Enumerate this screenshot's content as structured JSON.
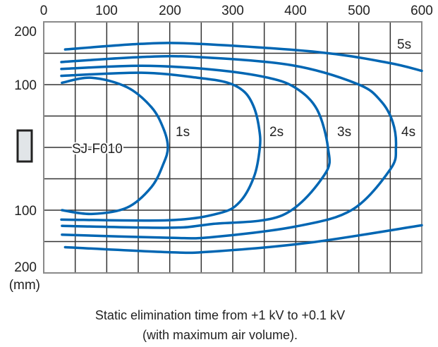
{
  "chart_data": {
    "type": "line",
    "xlim": [
      0,
      600
    ],
    "ylim": [
      -200,
      200
    ],
    "x_ticks": [
      "0",
      "100",
      "200",
      "300",
      "400",
      "500",
      "600"
    ],
    "y_ticks_top": [
      "200",
      "100"
    ],
    "y_ticks_bottom": [
      "100",
      "200"
    ],
    "y_unit": "(mm)",
    "grid": true,
    "grid_step": 50,
    "device_label": "SJ-F010",
    "curve_color": "#0066b3",
    "series": [
      {
        "name": "1s",
        "top": [
          [
            29,
            103
          ],
          [
            76,
            111
          ],
          [
            132,
            96
          ],
          [
            171,
            64
          ],
          [
            190,
            30
          ],
          [
            197,
            0
          ]
        ],
        "bottom": [
          [
            29,
            -100
          ],
          [
            76,
            -106
          ],
          [
            132,
            -96
          ],
          [
            171,
            -63
          ],
          [
            190,
            -26
          ],
          [
            197,
            0
          ]
        ]
      },
      {
        "name": "2s",
        "top": [
          [
            28,
            114
          ],
          [
            155,
            119
          ],
          [
            244,
            111
          ],
          [
            292,
            103
          ],
          [
            319,
            88
          ],
          [
            334,
            63
          ],
          [
            342,
            29
          ],
          [
            343,
            0
          ]
        ],
        "bottom": [
          [
            28,
            -115
          ],
          [
            199,
            -116
          ],
          [
            278,
            -105
          ],
          [
            311,
            -87
          ],
          [
            334,
            -46
          ],
          [
            343,
            0
          ]
        ]
      },
      {
        "name": "3s",
        "top": [
          [
            28,
            125
          ],
          [
            155,
            130
          ],
          [
            267,
            124
          ],
          [
            356,
            111
          ],
          [
            401,
            94
          ],
          [
            434,
            60
          ],
          [
            451,
            0
          ]
        ],
        "bottom": [
          [
            29,
            -125
          ],
          [
            199,
            -128
          ],
          [
            267,
            -122
          ],
          [
            379,
            -108
          ],
          [
            446,
            -43
          ],
          [
            451,
            0
          ]
        ]
      },
      {
        "name": "4s",
        "top": [
          [
            28,
            136
          ],
          [
            155,
            144
          ],
          [
            244,
            144
          ],
          [
            393,
            131
          ],
          [
            498,
            101
          ],
          [
            535,
            74
          ],
          [
            554,
            40
          ],
          [
            559,
            0
          ]
        ],
        "bottom": [
          [
            29,
            -139
          ],
          [
            199,
            -144
          ],
          [
            267,
            -143
          ],
          [
            400,
            -126
          ],
          [
            490,
            -99
          ],
          [
            550,
            -35
          ],
          [
            559,
            0
          ]
        ]
      },
      {
        "name": "5s",
        "top": [
          [
            34,
            156
          ],
          [
            155,
            165
          ],
          [
            244,
            165
          ],
          [
            434,
            152
          ],
          [
            546,
            135
          ],
          [
            600,
            122
          ]
        ],
        "bottom": [
          [
            34,
            -159
          ],
          [
            199,
            -167
          ],
          [
            267,
            -166
          ],
          [
            420,
            -152
          ],
          [
            600,
            -124
          ]
        ]
      }
    ],
    "caption_line1": "Static elimination time from +1 kV to +0.1 kV",
    "caption_line2": "(with maximum air volume)."
  }
}
